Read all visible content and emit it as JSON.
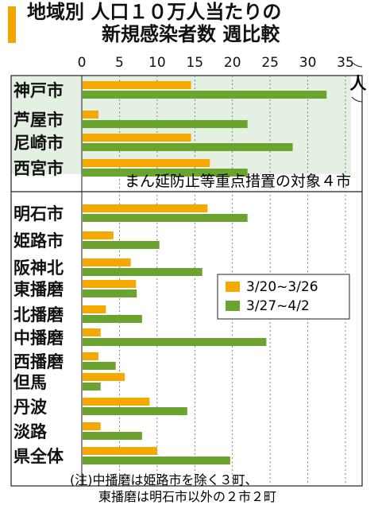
{
  "title": {
    "line1": "地域別 人口１０万人当たりの",
    "line2": "新規感染者数 週比較"
  },
  "unit": "人",
  "group_label": "まん延防止等重点措置の対象４市",
  "note": {
    "line1": "(注)中播磨は姫路市を除く３町、",
    "line2": "東播磨は明石市以外の２市２町"
  },
  "colors": {
    "series1": "#f5a800",
    "series2": "#6aa32e",
    "highlight_bg": "#e4f0e1",
    "title_accent": "#f0a800"
  },
  "chart_data": {
    "type": "bar",
    "orientation": "horizontal",
    "categories": [
      "神戸市",
      "芦屋市",
      "尼崎市",
      "西宮市",
      "明石市",
      "姫路市",
      "阪神北",
      "東播磨",
      "北播磨",
      "中播磨",
      "西播磨",
      "但馬",
      "丹波",
      "淡路",
      "県全体"
    ],
    "series": [
      {
        "name": "3/20~3/26",
        "values": [
          14.5,
          2.2,
          14.5,
          17.0,
          16.7,
          4.2,
          6.5,
          7.2,
          3.2,
          2.5,
          2.2,
          5.7,
          9.0,
          2.5,
          10.0
        ]
      },
      {
        "name": "3/27~4/2",
        "values": [
          32.5,
          22.0,
          28.0,
          22.0,
          22.0,
          10.3,
          16.0,
          7.3,
          8.0,
          24.5,
          4.5,
          2.5,
          14.0,
          8.0,
          19.7
        ]
      }
    ],
    "xlim": [
      0,
      35
    ],
    "xticks": [
      "0",
      "5",
      "10",
      "15",
      "20",
      "25",
      "30",
      "35"
    ],
    "legend_position": "right",
    "highlighted_group_count": 4
  }
}
